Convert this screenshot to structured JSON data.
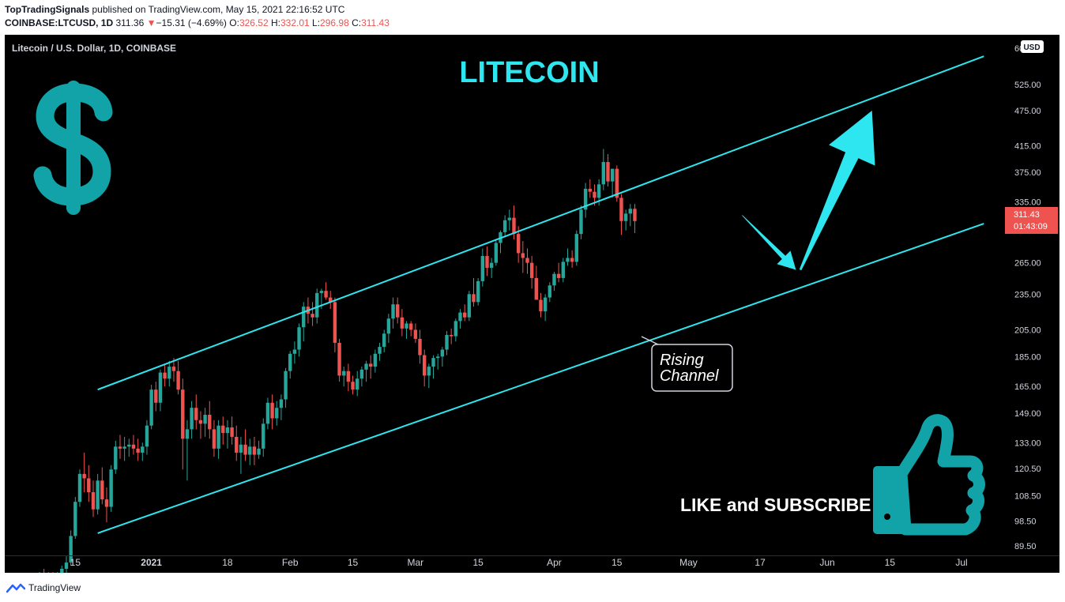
{
  "header": {
    "publisher": "TopTradingSignals",
    "published_text": "published on TradingView.com, May 15, 2021 22:16:52 UTC",
    "symbol": "COINBASE:LTCUSD, 1D",
    "last": "311.36",
    "change_arrow": "▼",
    "change": "−15.31 (−4.69%)",
    "o_label": "O:",
    "o": "326.52",
    "h_label": "H:",
    "h": "332.01",
    "l_label": "L:",
    "l": "296.98",
    "c_label": "C:",
    "c": "311.43"
  },
  "panel": {
    "legend": "Litecoin / U.S. Dollar, 1D, COINBASE",
    "title": "LITECOIN",
    "currency_button": "USD",
    "price_tag": "311.43",
    "countdown": "01:43:09",
    "callout_line1": "Rising",
    "callout_line2": "Channel",
    "cta": "LIKE and SUBSCRIBE"
  },
  "footer": {
    "brand": "TradingView"
  },
  "colors": {
    "up": "#26a69a",
    "down": "#ef5350",
    "channel": "#2ee6f0",
    "accent_teal": "#12a3a8",
    "background": "#000000"
  },
  "icons": [
    "dollar-icon",
    "thumbs-up-icon",
    "tradingview-logo-icon"
  ],
  "chart_data": {
    "type": "candlestick",
    "y_scale": "log",
    "ylim": [
      82,
      620
    ],
    "xlim": [
      "2020-12-07",
      "2021-07-04"
    ],
    "y_ticks": [
      "525.00",
      "475.00",
      "415.00",
      "375.00",
      "335.00",
      "265.00",
      "235.00",
      "205.00",
      "185.00",
      "165.00",
      "149.00",
      "133.00",
      "120.50",
      "108.50",
      "98.50",
      "89.50"
    ],
    "y_ticks_partial": [
      "60"
    ],
    "x_ticks": [
      {
        "date": "2020-12-15",
        "label": "15",
        "bold": false
      },
      {
        "date": "2021-01-01",
        "label": "2021",
        "bold": true
      },
      {
        "date": "2021-01-18",
        "label": "18",
        "bold": false
      },
      {
        "date": "2021-02-01",
        "label": "Feb",
        "bold": false
      },
      {
        "date": "2021-02-15",
        "label": "15",
        "bold": false
      },
      {
        "date": "2021-03-01",
        "label": "Mar",
        "bold": false
      },
      {
        "date": "2021-03-15",
        "label": "15",
        "bold": false
      },
      {
        "date": "2021-04-01",
        "label": "Apr",
        "bold": false
      },
      {
        "date": "2021-04-15",
        "label": "15",
        "bold": false
      },
      {
        "date": "2021-05-01",
        "label": "May",
        "bold": false
      },
      {
        "date": "2021-05-17",
        "label": "17",
        "bold": false
      },
      {
        "date": "2021-06-01",
        "label": "Jun",
        "bold": false
      },
      {
        "date": "2021-06-15",
        "label": "15",
        "bold": false
      },
      {
        "date": "2021-07-01",
        "label": "Jul",
        "bold": false
      }
    ],
    "first_date": "2020-12-07",
    "ohlc": [
      [
        79,
        81,
        77,
        80
      ],
      [
        80,
        82,
        78,
        79
      ],
      [
        79,
        81,
        77,
        80
      ],
      [
        80,
        81,
        78,
        79
      ],
      [
        79,
        81,
        77,
        80
      ],
      [
        80,
        83,
        78,
        82
      ],
      [
        82,
        86,
        80,
        84
      ],
      [
        84,
        95,
        83,
        93
      ],
      [
        93,
        108,
        92,
        106
      ],
      [
        106,
        120,
        104,
        118
      ],
      [
        118,
        128,
        110,
        116
      ],
      [
        116,
        122,
        106,
        110
      ],
      [
        110,
        115,
        100,
        103
      ],
      [
        103,
        118,
        101,
        115
      ],
      [
        115,
        121,
        105,
        107
      ],
      [
        107,
        112,
        98,
        104
      ],
      [
        104,
        122,
        102,
        120
      ],
      [
        120,
        134,
        118,
        131
      ],
      [
        131,
        137,
        125,
        130
      ],
      [
        130,
        136,
        124,
        131
      ],
      [
        131,
        135,
        126,
        132
      ],
      [
        132,
        137,
        127,
        130
      ],
      [
        130,
        135,
        124,
        128
      ],
      [
        128,
        133,
        124,
        131
      ],
      [
        131,
        145,
        127,
        142
      ],
      [
        142,
        166,
        140,
        163
      ],
      [
        163,
        168,
        150,
        155
      ],
      [
        155,
        176,
        150,
        174
      ],
      [
        174,
        180,
        165,
        170
      ],
      [
        170,
        182,
        165,
        178
      ],
      [
        178,
        184,
        168,
        175
      ],
      [
        175,
        182,
        160,
        163
      ],
      [
        163,
        170,
        120,
        135
      ],
      [
        135,
        145,
        115,
        140
      ],
      [
        140,
        156,
        135,
        152
      ],
      [
        152,
        160,
        140,
        145
      ],
      [
        145,
        150,
        135,
        143
      ],
      [
        143,
        152,
        136,
        148
      ],
      [
        148,
        156,
        135,
        140
      ],
      [
        140,
        145,
        126,
        130
      ],
      [
        130,
        145,
        125,
        142
      ],
      [
        142,
        147,
        132,
        138
      ],
      [
        138,
        145,
        130,
        141
      ],
      [
        141,
        147,
        132,
        136
      ],
      [
        136,
        142,
        124,
        128
      ],
      [
        128,
        136,
        118,
        132
      ],
      [
        132,
        140,
        124,
        127
      ],
      [
        127,
        135,
        122,
        131
      ],
      [
        131,
        136,
        122,
        127
      ],
      [
        127,
        134,
        125,
        130
      ],
      [
        130,
        146,
        126,
        143
      ],
      [
        143,
        158,
        140,
        155
      ],
      [
        155,
        160,
        140,
        146
      ],
      [
        146,
        156,
        142,
        152
      ],
      [
        152,
        160,
        145,
        157
      ],
      [
        157,
        177,
        152,
        175
      ],
      [
        175,
        189,
        170,
        187
      ],
      [
        187,
        196,
        180,
        190
      ],
      [
        190,
        210,
        185,
        207
      ],
      [
        207,
        228,
        196,
        224
      ],
      [
        224,
        232,
        210,
        218
      ],
      [
        218,
        228,
        208,
        215
      ],
      [
        215,
        240,
        210,
        236
      ],
      [
        236,
        240,
        222,
        238
      ],
      [
        238,
        246,
        230,
        232
      ],
      [
        232,
        238,
        222,
        228
      ],
      [
        228,
        232,
        188,
        195
      ],
      [
        195,
        198,
        168,
        172
      ],
      [
        172,
        178,
        165,
        175
      ],
      [
        175,
        180,
        162,
        168
      ],
      [
        168,
        172,
        160,
        163
      ],
      [
        163,
        175,
        159,
        170
      ],
      [
        170,
        178,
        165,
        176
      ],
      [
        176,
        182,
        168,
        180
      ],
      [
        180,
        186,
        170,
        178
      ],
      [
        178,
        190,
        174,
        187
      ],
      [
        187,
        195,
        182,
        192
      ],
      [
        192,
        205,
        188,
        202
      ],
      [
        202,
        218,
        195,
        214
      ],
      [
        214,
        232,
        206,
        226
      ],
      [
        226,
        232,
        210,
        215
      ],
      [
        215,
        222,
        200,
        206
      ],
      [
        206,
        212,
        198,
        210
      ],
      [
        210,
        212,
        200,
        205
      ],
      [
        205,
        210,
        195,
        198
      ],
      [
        198,
        205,
        180,
        186
      ],
      [
        186,
        190,
        165,
        172
      ],
      [
        172,
        180,
        164,
        178
      ],
      [
        178,
        186,
        170,
        184
      ],
      [
        184,
        187,
        176,
        185
      ],
      [
        185,
        192,
        178,
        190
      ],
      [
        190,
        204,
        186,
        201
      ],
      [
        201,
        206,
        194,
        200
      ],
      [
        200,
        214,
        196,
        212
      ],
      [
        212,
        222,
        206,
        219
      ],
      [
        219,
        226,
        212,
        215
      ],
      [
        215,
        238,
        212,
        235
      ],
      [
        235,
        250,
        224,
        228
      ],
      [
        228,
        250,
        225,
        247
      ],
      [
        247,
        280,
        242,
        272
      ],
      [
        272,
        282,
        252,
        260
      ],
      [
        260,
        270,
        250,
        265
      ],
      [
        265,
        290,
        262,
        286
      ],
      [
        286,
        300,
        275,
        298
      ],
      [
        298,
        318,
        292,
        312
      ],
      [
        312,
        325,
        300,
        315
      ],
      [
        315,
        330,
        290,
        296
      ],
      [
        296,
        305,
        265,
        275
      ],
      [
        275,
        288,
        255,
        270
      ],
      [
        270,
        280,
        254,
        265
      ],
      [
        265,
        272,
        240,
        250
      ],
      [
        250,
        262,
        232,
        230
      ],
      [
        230,
        236,
        215,
        220
      ],
      [
        220,
        235,
        212,
        232
      ],
      [
        232,
        246,
        228,
        243
      ],
      [
        243,
        256,
        238,
        254
      ],
      [
        254,
        265,
        246,
        250
      ],
      [
        250,
        270,
        246,
        266
      ],
      [
        266,
        280,
        262,
        270
      ],
      [
        270,
        278,
        260,
        266
      ],
      [
        266,
        300,
        262,
        296
      ],
      [
        296,
        330,
        290,
        325
      ],
      [
        325,
        360,
        315,
        352
      ],
      [
        352,
        365,
        340,
        348
      ],
      [
        348,
        358,
        330,
        340
      ],
      [
        340,
        365,
        330,
        358
      ],
      [
        358,
        410,
        350,
        390
      ],
      [
        390,
        402,
        355,
        362
      ],
      [
        362,
        380,
        340,
        380
      ],
      [
        380,
        385,
        335,
        340
      ],
      [
        340,
        345,
        295,
        311
      ],
      [
        311,
        325,
        300,
        320
      ],
      [
        320,
        332,
        305,
        326
      ],
      [
        326,
        332,
        297,
        311
      ]
    ],
    "channel": {
      "upper": [
        {
          "date": "2020-12-20",
          "value": 163
        },
        {
          "date": "2021-07-06",
          "value": 585
        }
      ],
      "lower": [
        {
          "date": "2020-12-20",
          "value": 94
        },
        {
          "date": "2021-07-06",
          "value": 308
        }
      ]
    },
    "arrows": [
      {
        "from": {
          "date": "2021-05-13",
          "value": 318
        },
        "to": {
          "date": "2021-05-25",
          "value": 258
        }
      },
      {
        "from": {
          "date": "2021-05-26",
          "value": 258
        },
        "to": {
          "date": "2021-06-11",
          "value": 475
        }
      }
    ],
    "last_price": 311.43
  }
}
